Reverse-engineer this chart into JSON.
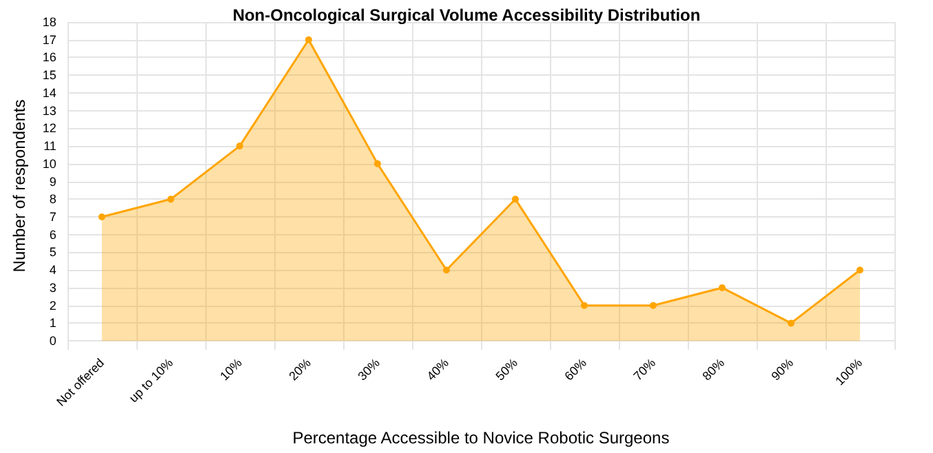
{
  "chart_data": {
    "type": "area",
    "title": "Non-Oncological Surgical Volume Accessibility Distribution",
    "xlabel": "Percentage Accessible to Novice Robotic Surgeons",
    "ylabel": "Number of respondents",
    "categories": [
      "Not offered",
      "up to 10%",
      "10%",
      "20%",
      "30%",
      "40%",
      "50%",
      "60%",
      "70%",
      "80%",
      "90%",
      "100%"
    ],
    "series": [
      {
        "color": "#ffa500",
        "values": [
          7,
          8,
          11,
          17,
          10,
          4,
          8,
          2,
          2,
          3,
          1,
          4
        ]
      }
    ],
    "ylim": [
      -0.5,
      18
    ],
    "yticks": [
      0,
      1,
      2,
      3,
      4,
      5,
      6,
      7,
      8,
      9,
      10,
      11,
      12,
      13,
      14,
      15,
      16,
      17,
      18
    ],
    "grid": true,
    "marker": "circle",
    "line_style": "solid"
  }
}
